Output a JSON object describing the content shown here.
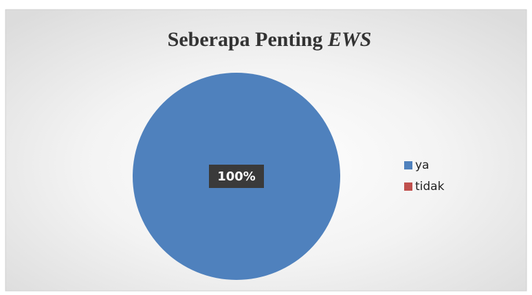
{
  "chart_data": {
    "type": "pie",
    "title": [
      "Seberapa Penting ",
      "EWS"
    ],
    "categories": [
      "ya",
      "tidak"
    ],
    "values": [
      100,
      0
    ],
    "value_labels": [
      "100%",
      null
    ],
    "colors": [
      "#4f81bd",
      "#c0504d"
    ],
    "legend": "right"
  }
}
